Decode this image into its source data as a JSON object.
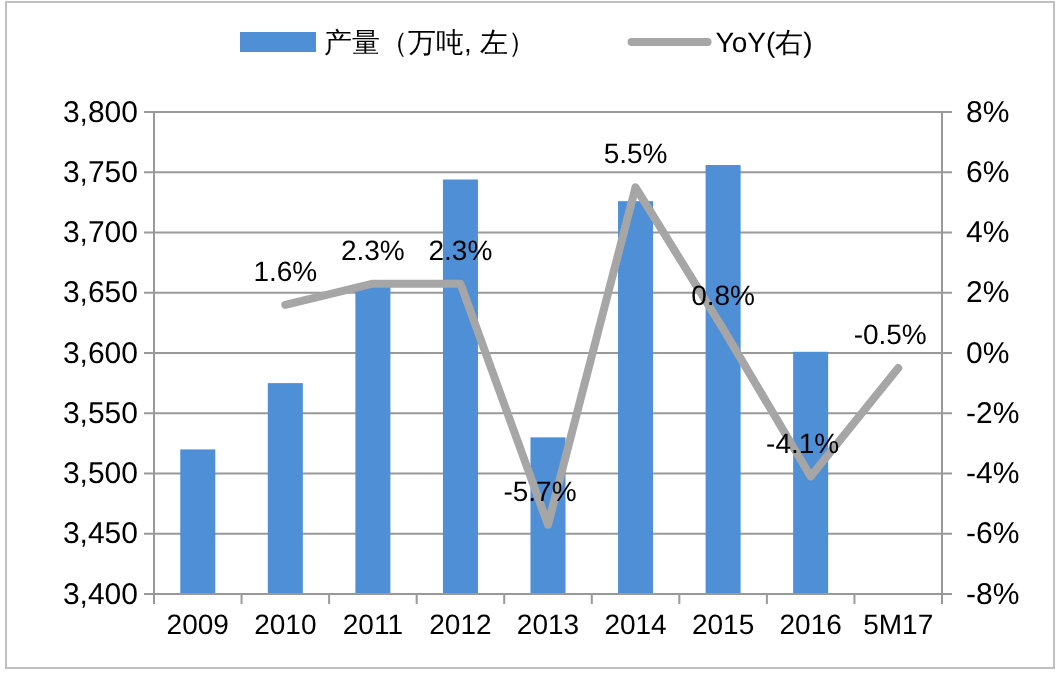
{
  "chart_data": {
    "type": "bar",
    "categories": [
      "2009",
      "2010",
      "2011",
      "2012",
      "2013",
      "2014",
      "2015",
      "2016",
      "5M17"
    ],
    "series": [
      {
        "name": "产量（万吨, 左）",
        "color": "#4f8fd6",
        "values": [
          3520,
          3575,
          3656,
          3744,
          3530,
          3726,
          3756,
          3601,
          null
        ]
      },
      {
        "name": "YoY(右)",
        "type": "line",
        "axis": "y2",
        "color": "#a6a6a6",
        "values": [
          null,
          1.6,
          2.3,
          2.3,
          -5.7,
          5.5,
          0.8,
          -4.1,
          -0.5
        ],
        "value_labels": [
          null,
          "1.6%",
          "2.3%",
          "2.3%",
          "-5.7%",
          "5.5%",
          "0.8%",
          "-4.1%",
          "-0.5%"
        ]
      }
    ],
    "ylim": [
      3400,
      3800
    ],
    "yticks": [
      {
        "value": 3400,
        "label": "3,400"
      },
      {
        "value": 3450,
        "label": "3,450"
      },
      {
        "value": 3500,
        "label": "3,500"
      },
      {
        "value": 3550,
        "label": "3,550"
      },
      {
        "value": 3600,
        "label": "3,600"
      },
      {
        "value": 3650,
        "label": "3,650"
      },
      {
        "value": 3700,
        "label": "3,700"
      },
      {
        "value": 3750,
        "label": "3,750"
      },
      {
        "value": 3800,
        "label": "3,800"
      }
    ],
    "y2lim": [
      -8,
      8
    ],
    "y2ticks": [
      {
        "value": -8,
        "label": "-8%"
      },
      {
        "value": -6,
        "label": "-6%"
      },
      {
        "value": -4,
        "label": "-4%"
      },
      {
        "value": -2,
        "label": "-2%"
      },
      {
        "value": 0,
        "label": "0%"
      },
      {
        "value": 2,
        "label": "2%"
      },
      {
        "value": 4,
        "label": "4%"
      },
      {
        "value": 6,
        "label": "6%"
      },
      {
        "value": 8,
        "label": "8%"
      }
    ],
    "grid": "y",
    "legend": "top"
  }
}
